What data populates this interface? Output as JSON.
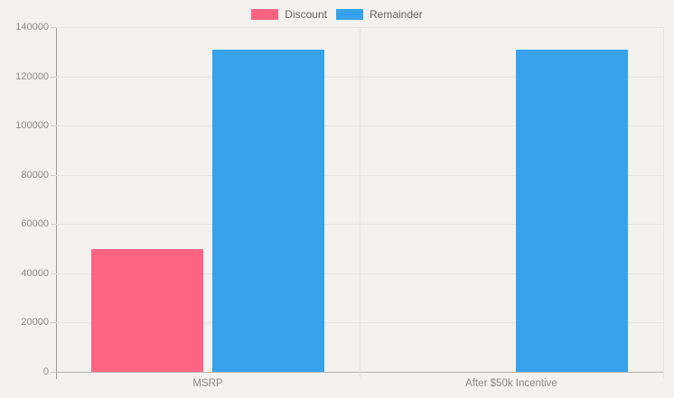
{
  "chart_data": {
    "type": "bar",
    "title": "",
    "categories": [
      "MSRP",
      "After $50k Incentive"
    ],
    "series": [
      {
        "name": "Discount",
        "color": "#FF6384",
        "values": [
          50000,
          0
        ]
      },
      {
        "name": "Remainder",
        "color": "#36A2EB",
        "values": [
          131000,
          131000
        ]
      }
    ],
    "xlabel": "",
    "ylabel": "",
    "ylim": [
      0,
      140000
    ],
    "ytick_step": 20000,
    "ytick_labels": [
      "0",
      "20000",
      "40000",
      "60000",
      "80000",
      "100000",
      "120000",
      "140000"
    ],
    "grid": true,
    "legend_position": "top"
  },
  "colors": {
    "background": "#F3F2EF",
    "gridline": "#E7E6E2",
    "tick_dash": "#CDCCC8",
    "y_axis_line": "#9E9C99",
    "x_axis_line": "#B7B5B2",
    "tick_text": "#8A8A88",
    "legend_text": "#666666",
    "discount": "#FF6384",
    "remainder": "#36A2EB"
  }
}
